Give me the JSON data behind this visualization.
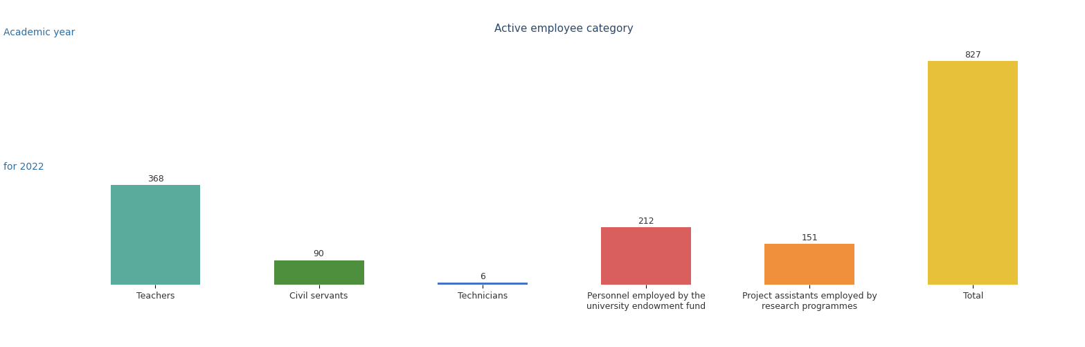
{
  "categories": [
    "Teachers",
    "Civil servants",
    "Technicians",
    "Personnel employed by the\nuniversity endowment fund",
    "Project assistants employed by\nresearch programmes",
    "Total"
  ],
  "values": [
    368,
    90,
    6,
    212,
    151,
    827
  ],
  "bar_colors": [
    "#5aab9b",
    "#4e8f3e",
    "#4472c4",
    "#d95f5f",
    "#f0903c",
    "#e8c13a"
  ],
  "title": "Active employee category",
  "title_color": "#2e4a6b",
  "title_fontsize": 11,
  "ylabel_left_top": "Academic year",
  "ylabel_left_mid": "for 2022",
  "ylabel_color": "#2e6fa3",
  "ylabel_fontsize": 10,
  "value_label_fontsize": 9,
  "value_label_color": "#333333",
  "xlabel_fontsize": 9,
  "xlabel_color": "#333333",
  "ylim": [
    0,
    900
  ],
  "grid_color": "#e0e0e0",
  "background_color": "#ffffff",
  "bar_width": 0.55
}
